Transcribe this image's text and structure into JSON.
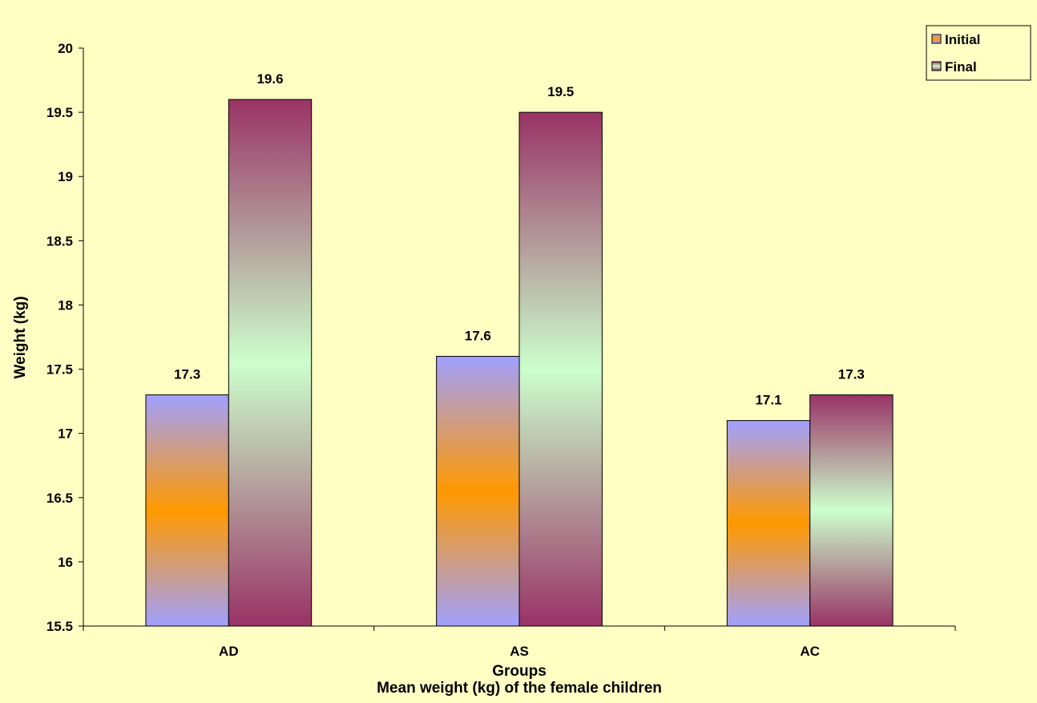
{
  "chart_data": {
    "type": "bar",
    "title": "Mean weight (kg) of the female children",
    "xlabel": "Groups",
    "ylabel": "Weight (kg)",
    "categories": [
      "AD",
      "AS",
      "AC"
    ],
    "series": [
      {
        "name": "Initial",
        "values": [
          17.3,
          17.6,
          17.1
        ]
      },
      {
        "name": "Final",
        "values": [
          19.6,
          19.5,
          17.3
        ]
      }
    ],
    "data_labels": [
      [
        "17.3",
        "17.6",
        "17.1"
      ],
      [
        "19.6",
        "19.5",
        "17.3"
      ]
    ],
    "ylim": [
      15.5,
      20
    ],
    "yticks": [
      15.5,
      16,
      16.5,
      17,
      17.5,
      18,
      18.5,
      19,
      19.5,
      20
    ],
    "ytick_labels": [
      "15.5",
      "16",
      "16.5",
      "17",
      "17.5",
      "18",
      "18.5",
      "19",
      "19.5",
      "20"
    ],
    "grid": false,
    "legend_position": "top-right",
    "colors": {
      "background": "#ffffc4",
      "initial_edge": "#a0a0ff",
      "initial_mid": "#ff9900",
      "final_edge": "#993366",
      "final_mid": "#ccffcc"
    }
  }
}
